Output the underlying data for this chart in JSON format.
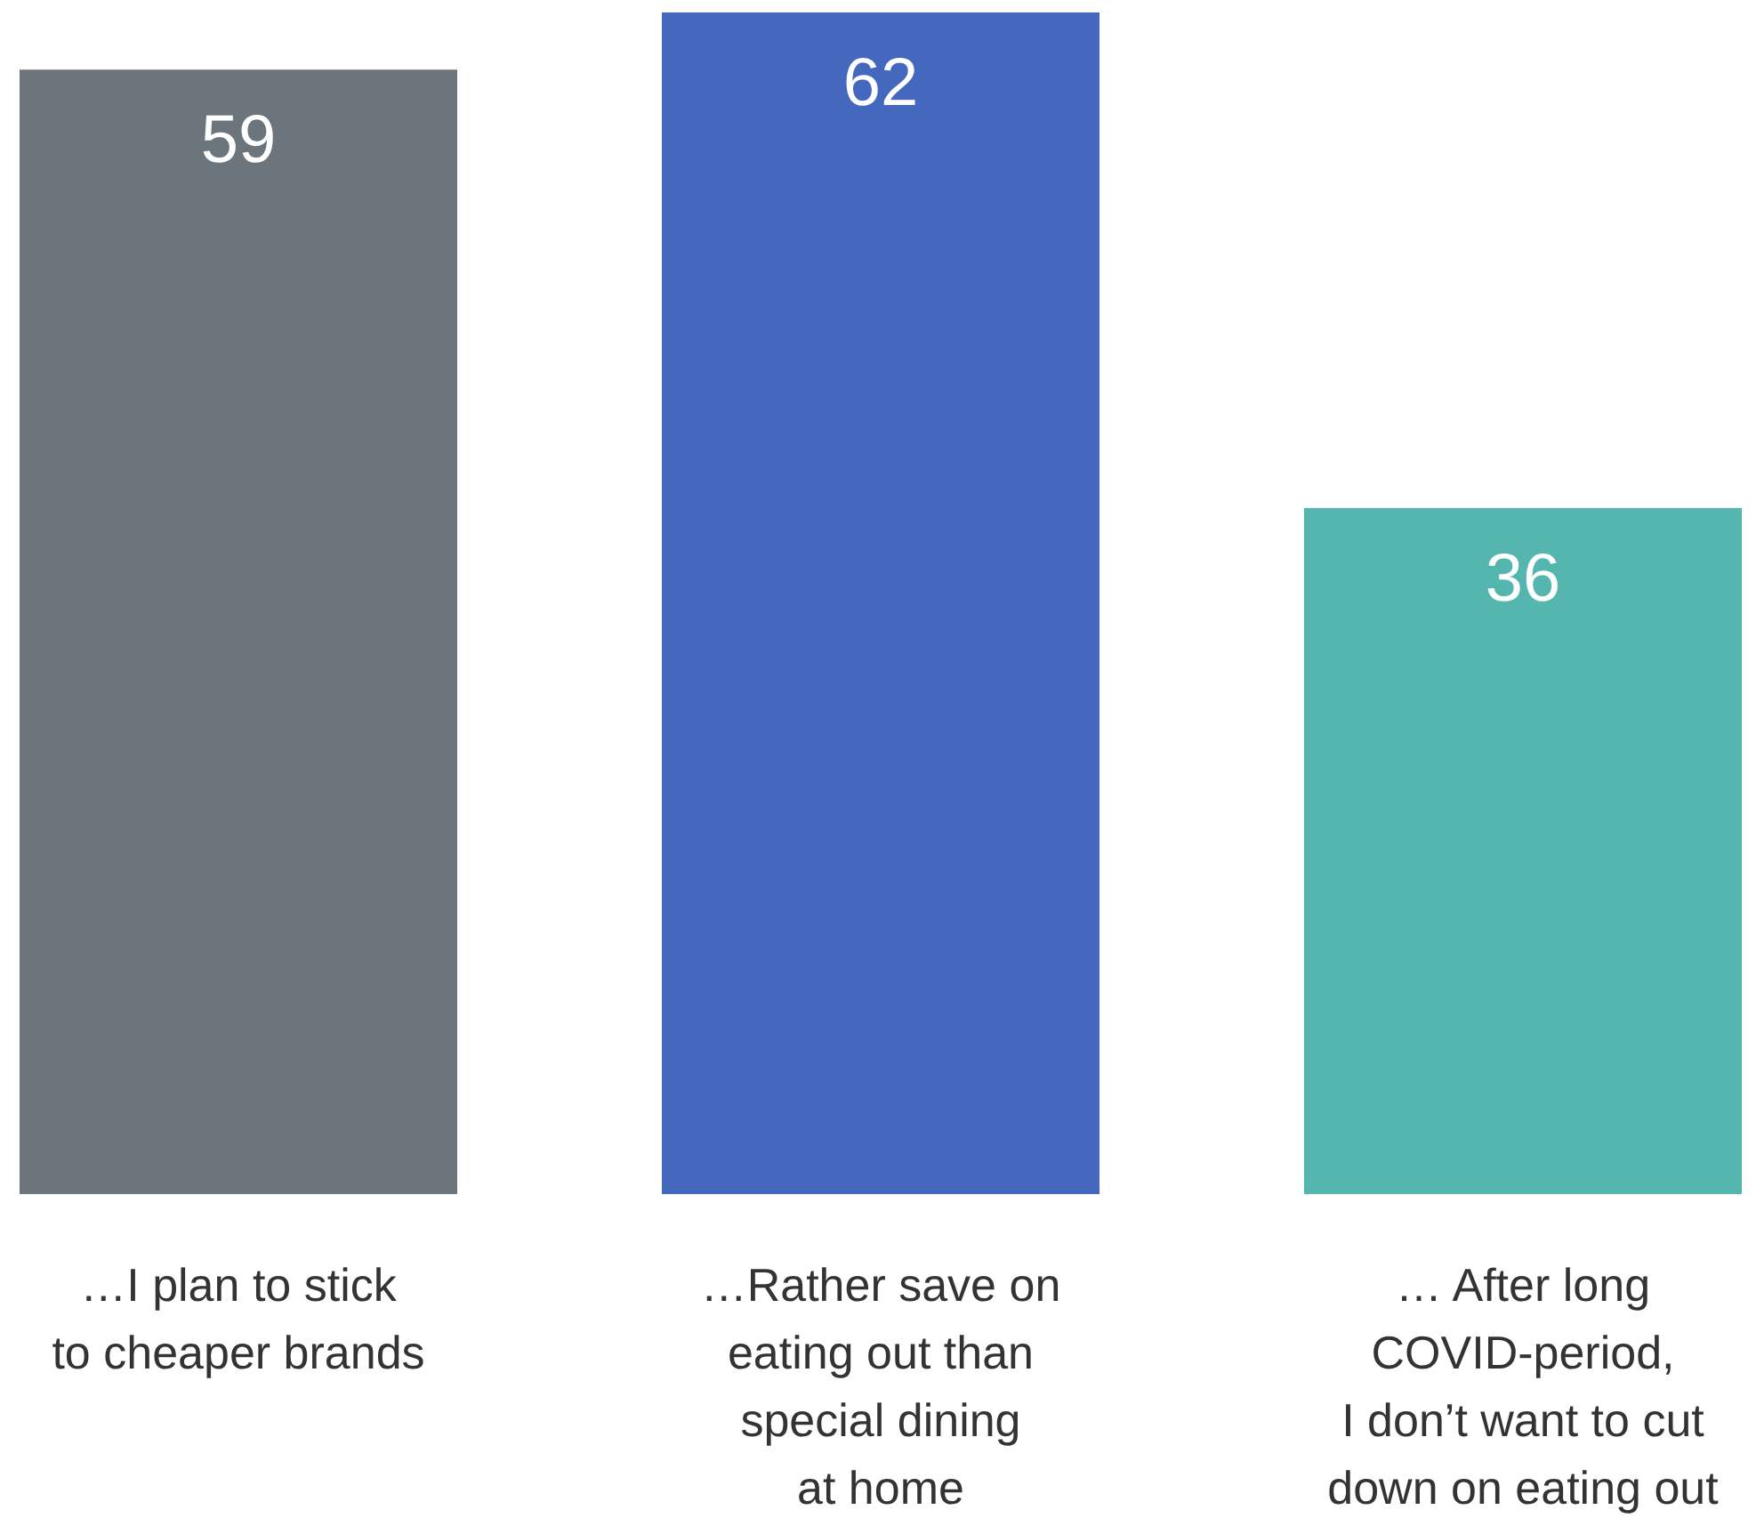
{
  "chart_data": {
    "type": "bar",
    "categories": [
      "…I plan to stick\nto cheaper brands",
      "…Rather save on\neating out than\nspecial dining\nat home",
      "… After long\nCOVID-period,\nI don’t want to cut\ndown on eating out"
    ],
    "values": [
      59,
      62,
      36
    ],
    "colors": [
      "#6b757b",
      "#4468be",
      "#55b6b0"
    ],
    "data_labels": true
  }
}
